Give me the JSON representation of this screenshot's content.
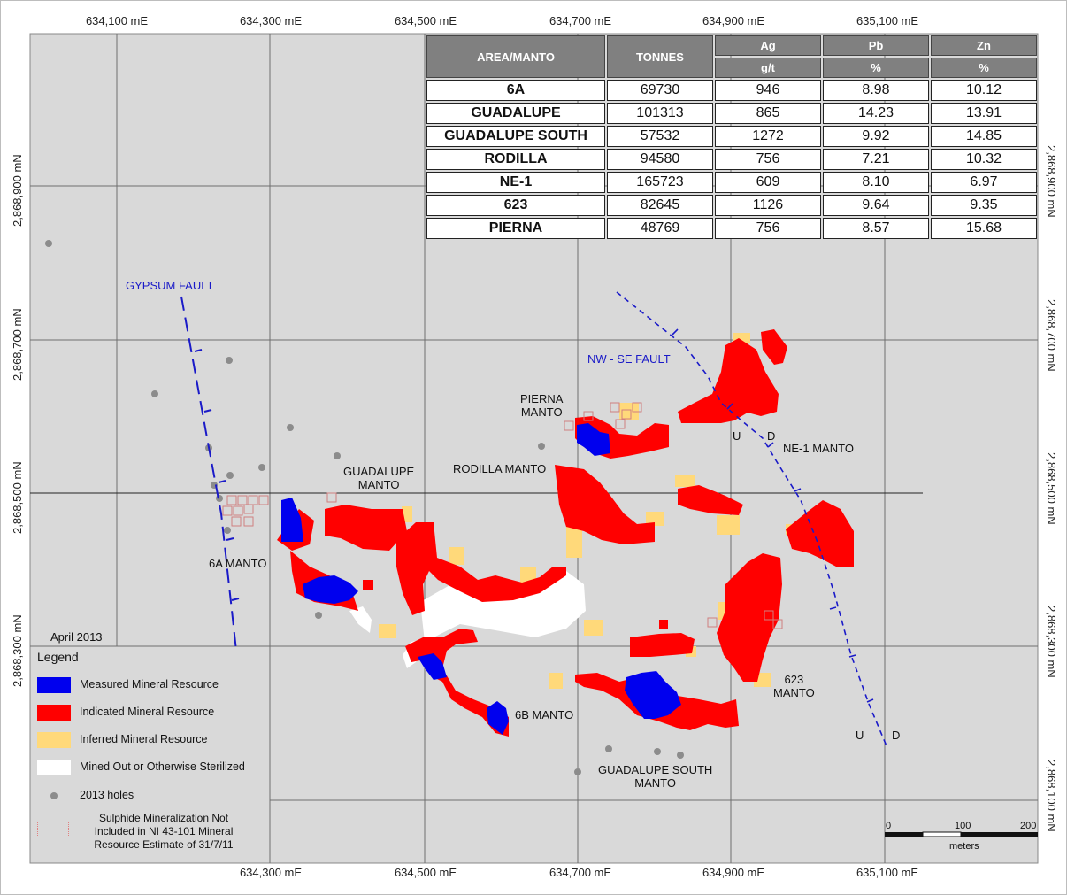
{
  "coords": {
    "top_easting": [
      "634,100 mE",
      "634,300 mE",
      "634,500 mE",
      "634,700 mE",
      "634,900 mE",
      "635,100 mE"
    ],
    "bottom_easting": [
      "634,300 mE",
      "634,500 mE",
      "634,700 mE",
      "634,900 mE",
      "635,100 mE"
    ],
    "left_northing": [
      "2,868,900 mN",
      "2,868,700 mN",
      "2,868,500 mN",
      "2,868,300 mN"
    ],
    "right_northing": [
      "2,868,900 mN",
      "2,868,700 mN",
      "2,868,500 mN",
      "2,868,300 mN",
      "2,868,100 mN"
    ]
  },
  "table": {
    "headers": {
      "area": "AREA/MANTO",
      "tonnes": "TONNES",
      "ag": "Ag",
      "pb": "Pb",
      "zn": "Zn"
    },
    "units": {
      "ag": "g/t",
      "pb": "%",
      "zn": "%"
    },
    "rows": [
      {
        "area": "6A",
        "tonnes": "69730",
        "ag": "946",
        "pb": "8.98",
        "zn": "10.12"
      },
      {
        "area": "GUADALUPE",
        "tonnes": "101313",
        "ag": "865",
        "pb": "14.23",
        "zn": "13.91"
      },
      {
        "area": "GUADALUPE SOUTH",
        "tonnes": "57532",
        "ag": "1272",
        "pb": "9.92",
        "zn": "14.85"
      },
      {
        "area": "RODILLA",
        "tonnes": "94580",
        "ag": "756",
        "pb": "7.21",
        "zn": "10.32"
      },
      {
        "area": "NE-1",
        "tonnes": "165723",
        "ag": "609",
        "pb": "8.10",
        "zn": "6.97"
      },
      {
        "area": "623",
        "tonnes": "82645",
        "ag": "1126",
        "pb": "9.64",
        "zn": "9.35"
      },
      {
        "area": "PIERNA",
        "tonnes": "48769",
        "ag": "756",
        "pb": "8.57",
        "zn": "15.68"
      }
    ]
  },
  "labels": {
    "gypsum_fault": "GYPSUM FAULT",
    "nw_se_fault": "NW - SE FAULT",
    "pierna_1": "PIERNA",
    "pierna_2": "MANTO",
    "rodilla": "RODILLA MANTO",
    "guadalupe_1": "GUADALUPE",
    "guadalupe_2": "MANTO",
    "ne1": "NE-1 MANTO",
    "a6": "6A MANTO",
    "b6": "6B MANTO",
    "m623_1": "623",
    "m623_2": "MANTO",
    "gs_1": "GUADALUPE SOUTH",
    "gs_2": "MANTO",
    "date": "April  2013",
    "u": "U",
    "d": "D"
  },
  "legend": {
    "title": "Legend",
    "items": [
      {
        "label": "Measured Mineral Resource",
        "color": "#0000ee"
      },
      {
        "label": "Indicated Mineral Resource",
        "color": "#ff0000"
      },
      {
        "label": "Inferred Mineral Resource",
        "color": "#ffd97a"
      },
      {
        "label": "Mined Out or Otherwise Sterilized",
        "color": "#ffffff"
      },
      {
        "label": "2013 holes",
        "color": "#8c8c8c"
      },
      {
        "label": "Sulphide Mineralization Not Included in NI 43-101 Mineral Resource Estimate of 31/7/11",
        "color": "#e08080"
      }
    ]
  },
  "scale": {
    "t0": "0",
    "t100": "100",
    "t200": "200",
    "unit": "meters"
  },
  "colors": {
    "map_bg": "#d9d9d9",
    "grid": "#6e6e6e",
    "measured": "#0000ee",
    "indicated": "#ff0000",
    "inferred": "#ffd97a",
    "mined": "#ffffff",
    "fault": "#1a1ac8"
  }
}
